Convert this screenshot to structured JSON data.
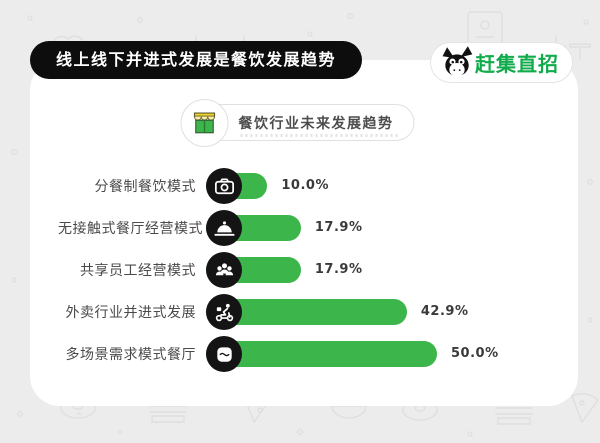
{
  "banner": {
    "title": "线上线下并进式发展是餐饮发展趋势"
  },
  "brand": {
    "name": "赶集直招",
    "mascot": "donkey",
    "color": "#12ab4c"
  },
  "chart_header": {
    "title": "餐饮行业未来发展趋势",
    "icon": "storefront-icon"
  },
  "chart_data": {
    "type": "bar",
    "orientation": "horizontal",
    "title": "餐饮行业未来发展趋势",
    "categories": [
      "分餐制餐饮模式",
      "无接触式餐厅经营模式",
      "共享员工经营模式",
      "外卖行业并进式发展",
      "多场景需求模式餐厅"
    ],
    "values": [
      10.0,
      17.9,
      17.9,
      42.9,
      50.0
    ],
    "value_labels": [
      "10.0%",
      "17.9%",
      "17.9%",
      "42.9%",
      "50.0%"
    ],
    "row_icons": [
      "meal-tray-icon",
      "cloche-icon",
      "team-icon",
      "delivery-rider-icon",
      "takeout-box-icon"
    ],
    "xlim": [
      0,
      55
    ],
    "grid": false,
    "legend": "none",
    "bar_color": "#3cb54a"
  },
  "colors": {
    "background": "#ececec",
    "card": "#ffffff",
    "banner_black": "#0d0d0d",
    "accent_green": "#3cb54a",
    "brand_green": "#12ab4c",
    "doodle_gray": "#dfdfdf"
  }
}
